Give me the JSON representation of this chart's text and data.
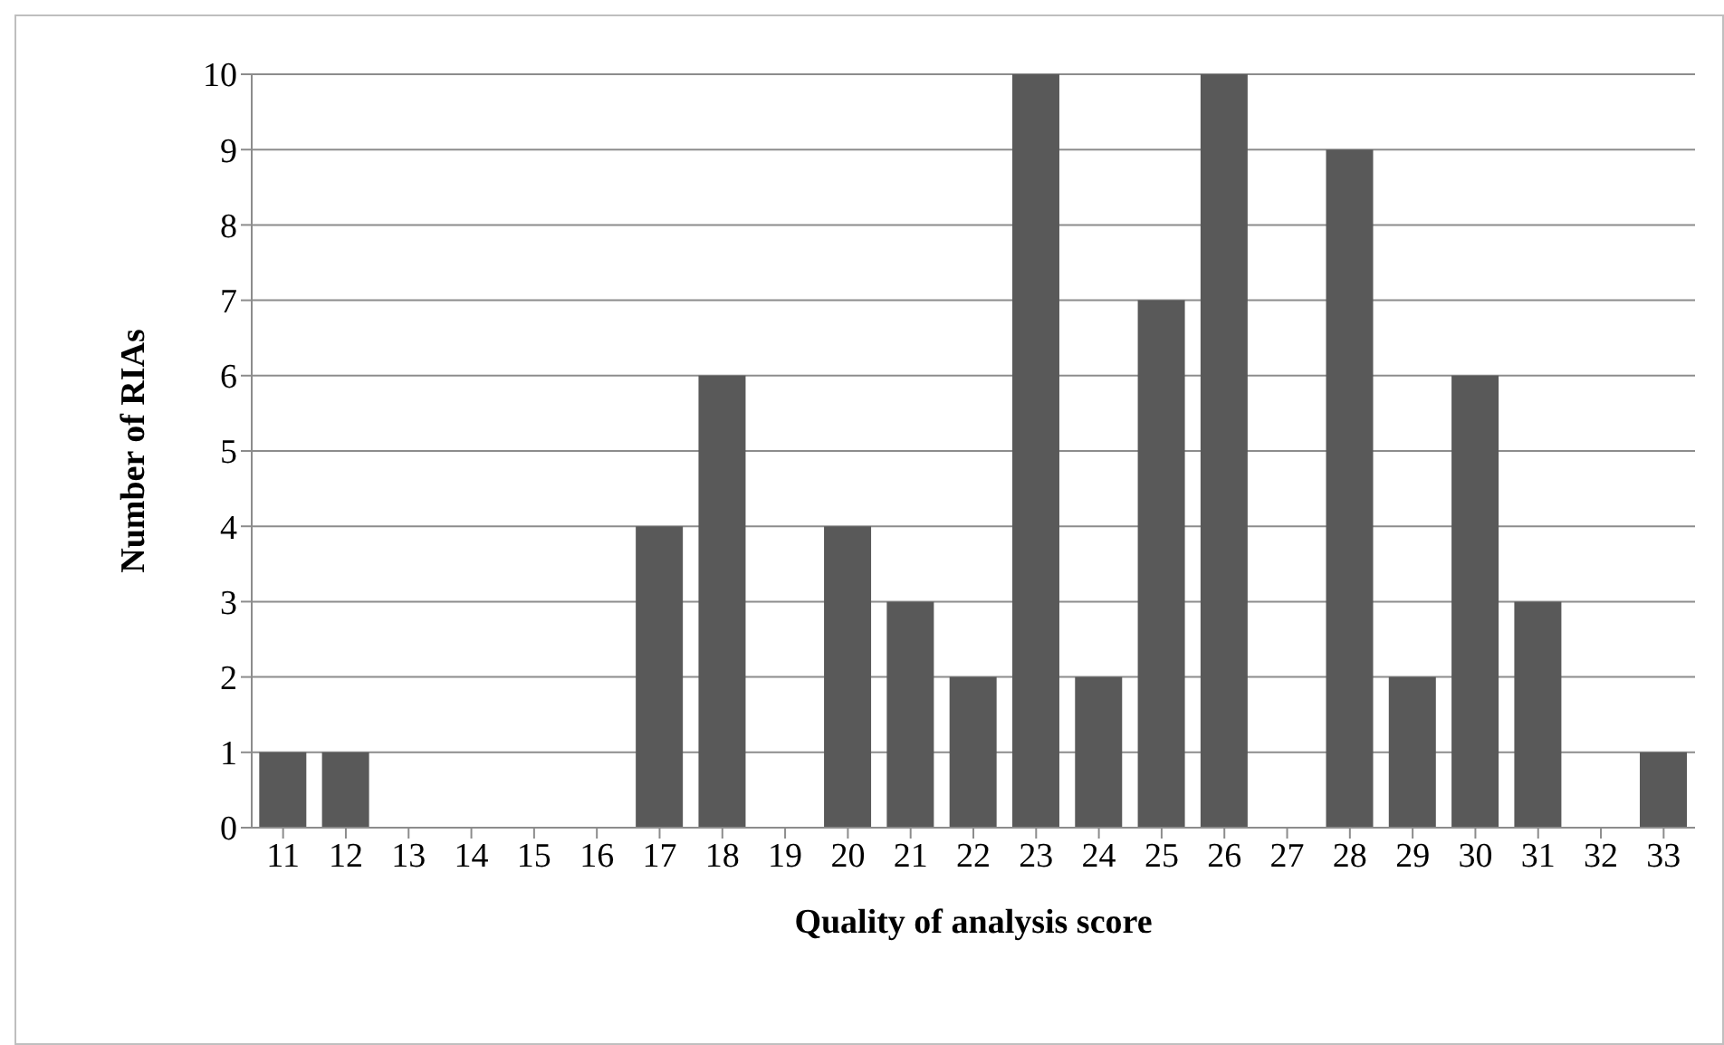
{
  "chart_data": {
    "type": "bar",
    "xlabel": "Quality of analysis score",
    "ylabel": "Number of RIAs",
    "categories": [
      "11",
      "12",
      "13",
      "14",
      "15",
      "16",
      "17",
      "18",
      "19",
      "20",
      "21",
      "22",
      "23",
      "24",
      "25",
      "26",
      "27",
      "28",
      "29",
      "30",
      "31",
      "32",
      "33"
    ],
    "values": [
      1,
      1,
      0,
      0,
      0,
      0,
      4,
      6,
      0,
      4,
      3,
      2,
      10,
      2,
      7,
      10,
      0,
      9,
      2,
      6,
      3,
      0,
      1
    ],
    "color": "#595959",
    "ylim": [
      0,
      10
    ],
    "yticks": [
      0,
      1,
      2,
      3,
      4,
      5,
      6,
      7,
      8,
      9,
      10
    ],
    "grid": "y"
  }
}
